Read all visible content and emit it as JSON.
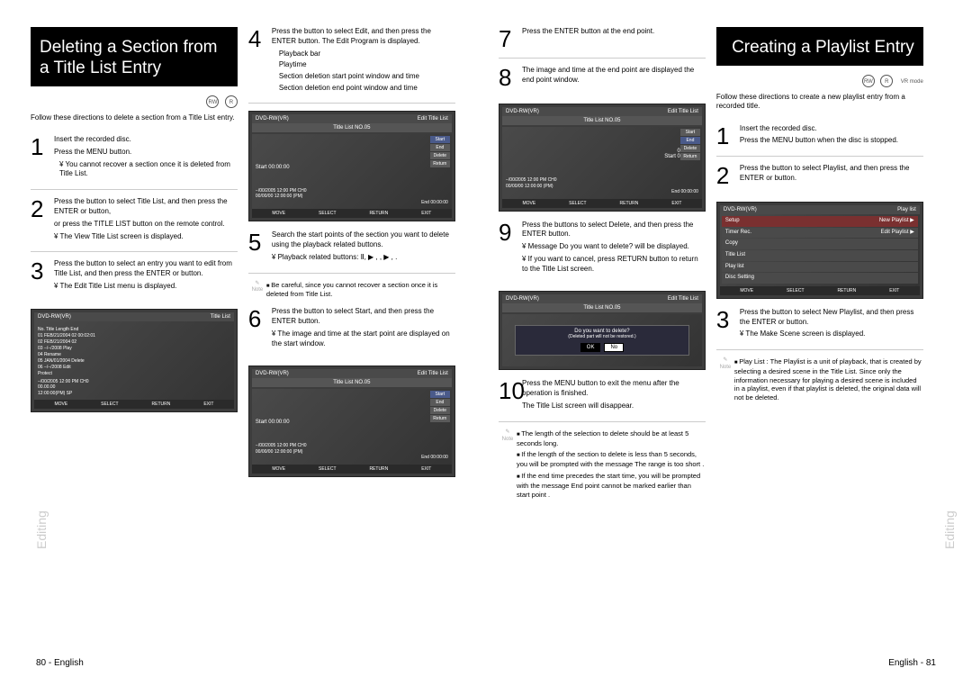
{
  "leftPage": {
    "title": "Deleting a Section from a Title List Entry",
    "intro": "Follow these directions to delete a section from a Title List entry.",
    "sideLabel": "Editing",
    "footer": "80 - English",
    "steps": {
      "s1": {
        "line1": "Insert the recorded disc.",
        "line2": "Press the MENU button.",
        "note": "¥ You cannot recover a section once it is deleted from Title List."
      },
      "s2": {
        "line1": "Press the        button to select Title List, and then press the ENTER or    button,",
        "line2": "or press the TITLE LIST button on the remote control.",
        "note": "¥ The View Title List screen is displayed."
      },
      "s3": {
        "line1": "Press the        button to select an entry you want to edit from Title List, and then press the ENTER or    button.",
        "note": "¥ The Edit Title List menu is displayed."
      },
      "s4": {
        "line1": "Press the        button to select Edit, and then press the ENTER button. The Edit Program is displayed.",
        "b1": "Playback bar",
        "b2": "Playtime",
        "b3": "Section deletion start point window and time",
        "b4": "Section deletion end point window and time"
      },
      "s5": {
        "line1": "Search the start points of the section you want to delete using the playback related buttons.",
        "note": "¥ Playback related buttons: Ⅱ, ▶ ,    , ▶ ,    ."
      },
      "s6": {
        "line1": "Press the        button to select Start, and then press the ENTER button.",
        "note": "¥ The image and time at the start point are displayed on the start window."
      }
    },
    "screenshots": {
      "titleList": {
        "headerL": "DVD-RW(VR)",
        "headerR": "Title List",
        "cols": "No.  Title           Length  End",
        "rows": [
          "01  FEB/21/2004 02   00:02:01",
          "02  FEB/21/2004 02",
          "03  −/−/2008          Play",
          "04                    Rename",
          "05  JAN/01/2004    Delete",
          "06  −/−/2008        Edit",
          "                         Protect"
        ],
        "info": [
          "−/00/2005 12:00 PM CH0",
          "00.00.00",
          "12:00:00(PM)       SP"
        ],
        "footer": [
          "MOVE",
          "SELECT",
          "RETURN",
          "EXIT"
        ]
      },
      "editTitle": {
        "headerL": "DVD-RW(VR)",
        "headerR": "Edit Title List",
        "sub": "Title List NO.05",
        "buttons": [
          "Start",
          "End",
          "Delete",
          "Return"
        ],
        "start": "Start   00:00:00",
        "info": [
          "−/00/2005 12:00 PM CH0",
          "00/00/00 12:00:00 (PM)",
          "End   00:00:00"
        ],
        "footer": [
          "MOVE",
          "SELECT",
          "RETURN",
          "EXIT"
        ]
      }
    },
    "note4": "Be careful, since you cannot recover a section once it is deleted from Title List."
  },
  "rightPage": {
    "title": "Creating a Playlist Entry",
    "intro": "Follow these directions to create a new playlist entry from a recorded title.",
    "sideLabel": "Editing",
    "footer": "English - 81",
    "steps": {
      "s7": {
        "line1": "Press the ENTER button at the end point."
      },
      "s8": {
        "line1": "The image and time at the end point are displayed the end point window."
      },
      "s9": {
        "line1": "Press the        buttons to select Delete, and then press the ENTER button.",
        "n1": "¥ Message  Do you want to delete?  will be displayed.",
        "n2": "¥ If you want to cancel, press RETURN button to return to the Title List screen."
      },
      "s10": {
        "line1": "Press the MENU button to exit the menu after the operation is finished.",
        "line2": "The Title List screen will disappear."
      },
      "r1": {
        "line1": "Insert the recorded disc.",
        "line2": "Press the MENU button when the disc is stopped."
      },
      "r2": {
        "line1": "Press the        button to select Playlist, and then press the ENTER or    button."
      },
      "r3": {
        "line1": "Press the        button to select New Playlist, and then press the ENTER or    button.",
        "note": "¥ The Make Scene screen is displayed."
      }
    },
    "screenshots": {
      "editEnd": {
        "headerL": "DVD-RW(VR)",
        "headerR": "Edit Title List",
        "sub": "Title List NO.05",
        "buttons": [
          "Start",
          "End",
          "Delete",
          "Return"
        ],
        "time": "00:00:19",
        "start": "Start   00:00:17",
        "info": [
          "−/00/2005 12:00 PM CH0",
          "00/00/00 12:00:00 (PM)",
          "End   00:00:00"
        ],
        "footer": [
          "MOVE",
          "SELECT",
          "RETURN",
          "EXIT"
        ]
      },
      "dialog": {
        "headerL": "DVD-RW(VR)",
        "headerR": "Edit Title List",
        "sub": "Title List NO.05",
        "msg1": "Do you want to delete?",
        "msg2": "(Deleted part will not be restored.)",
        "ok": "OK",
        "no": "No"
      },
      "playlist": {
        "headerL": "DVD-RW(VR)",
        "headerR": "Play list",
        "items": [
          {
            "l": "Setup",
            "r": "New Playlist",
            "hl": true
          },
          {
            "l": "Timer Rec.",
            "r": "Edit Playlist",
            "hl": false
          },
          {
            "l": "Copy",
            "r": "",
            "hl": false
          },
          {
            "l": "Title List",
            "r": "",
            "hl": false
          },
          {
            "l": "Play list",
            "r": "",
            "hl": false
          },
          {
            "l": "Disc Setting",
            "r": "",
            "hl": false
          }
        ],
        "footer": [
          "MOVE",
          "SELECT",
          "RETURN",
          "EXIT"
        ]
      }
    },
    "notes": {
      "n1": "The length of the selection to delete should be at least 5 seconds long.",
      "n2": "If the length of the section to delete is less than 5 seconds, you will be prompted with the message  The range is too short .",
      "n3": "If the end time precedes the start time, you will be prompted with the message  End point cannot be marked earlier than start point .",
      "pl": "Play List : The Playlist is a unit of playback, that is created by selecting a desired scene in the Title List. Since only the information necessary for playing a desired scene is included in a playlist, even if that playlist is deleted, the original data will not be deleted."
    }
  }
}
